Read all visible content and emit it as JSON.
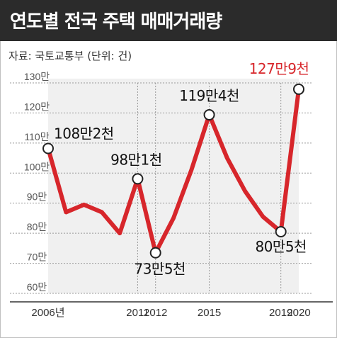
{
  "title": "연도별 전국 주택 매매거래량",
  "source": "자료: 국토교통부 (단위: 건)",
  "colors": {
    "line": "#d7262b",
    "highlight": "#d7262b",
    "header": "#2b2b2b",
    "plot_bg": "#f0f0f0",
    "grid": "#9a9a9a"
  },
  "chart_data": {
    "type": "line",
    "x": [
      2006,
      2007,
      2008,
      2009,
      2010,
      2011,
      2012,
      2013,
      2014,
      2015,
      2016,
      2017,
      2018,
      2019,
      2020
    ],
    "values": [
      108.2,
      87,
      89.5,
      87,
      80,
      98.1,
      73.5,
      85,
      101,
      119.4,
      105,
      94,
      85.5,
      80.5,
      127.9
    ],
    "ylim": [
      60,
      130
    ],
    "y_ticks": [
      "130만",
      "120만",
      "110만",
      "100만",
      "90만",
      "80만",
      "70만",
      "60만"
    ],
    "y_tick_values": [
      130,
      120,
      110,
      100,
      90,
      80,
      70,
      60
    ],
    "x_tick_labels": [
      {
        "x": 2006,
        "label": "2006년"
      },
      {
        "x": 2011,
        "label": "2011"
      },
      {
        "x": 2012,
        "label": "2012"
      },
      {
        "x": 2015,
        "label": "2015"
      },
      {
        "x": 2019,
        "label": "2019"
      },
      {
        "x": 2020,
        "label": "2020"
      }
    ],
    "annotations": [
      {
        "x": 2006,
        "label": "108만2천",
        "highlight": false
      },
      {
        "x": 2011,
        "label": "98만1천",
        "highlight": false
      },
      {
        "x": 2012,
        "label": "73만5천",
        "highlight": false
      },
      {
        "x": 2015,
        "label": "119만4천",
        "highlight": false
      },
      {
        "x": 2019,
        "label": "80만5천",
        "highlight": false
      },
      {
        "x": 2020,
        "label": "127만9천",
        "highlight": true
      }
    ],
    "grid": true,
    "shaded_region": {
      "from": 2006,
      "to": 2020
    }
  }
}
